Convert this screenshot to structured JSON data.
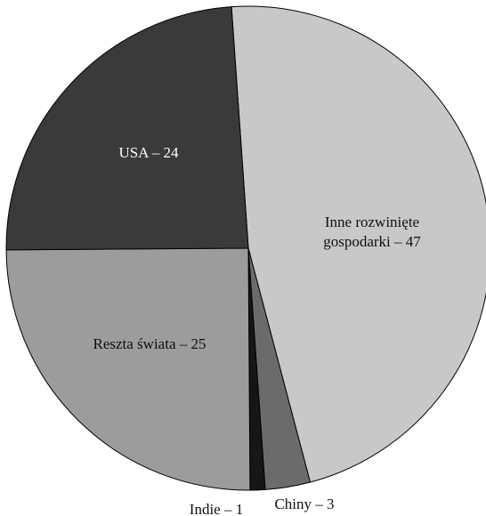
{
  "chart_data": {
    "type": "pie",
    "slices": [
      {
        "label": "Inne rozwinięte gospodarki – 47",
        "label_lines": [
          "Inne rozwinięte",
          "gospodarki – 47"
        ],
        "value": 47,
        "color": "#c8c8c8"
      },
      {
        "label": "Chiny – 3",
        "label_lines": [
          "Chiny – 3"
        ],
        "value": 3,
        "color": "#6b6b6b"
      },
      {
        "label": "Indie – 1",
        "label_lines": [
          "Indie – 1"
        ],
        "value": 1,
        "color": "#161616"
      },
      {
        "label": "Reszta świata – 25",
        "label_lines": [
          "Reszta świata – 25"
        ],
        "value": 25,
        "color": "#9c9c9c"
      },
      {
        "label": "USA – 24",
        "label_lines": [
          "USA – 24"
        ],
        "value": 24,
        "color": "#3a3a3a"
      }
    ]
  }
}
